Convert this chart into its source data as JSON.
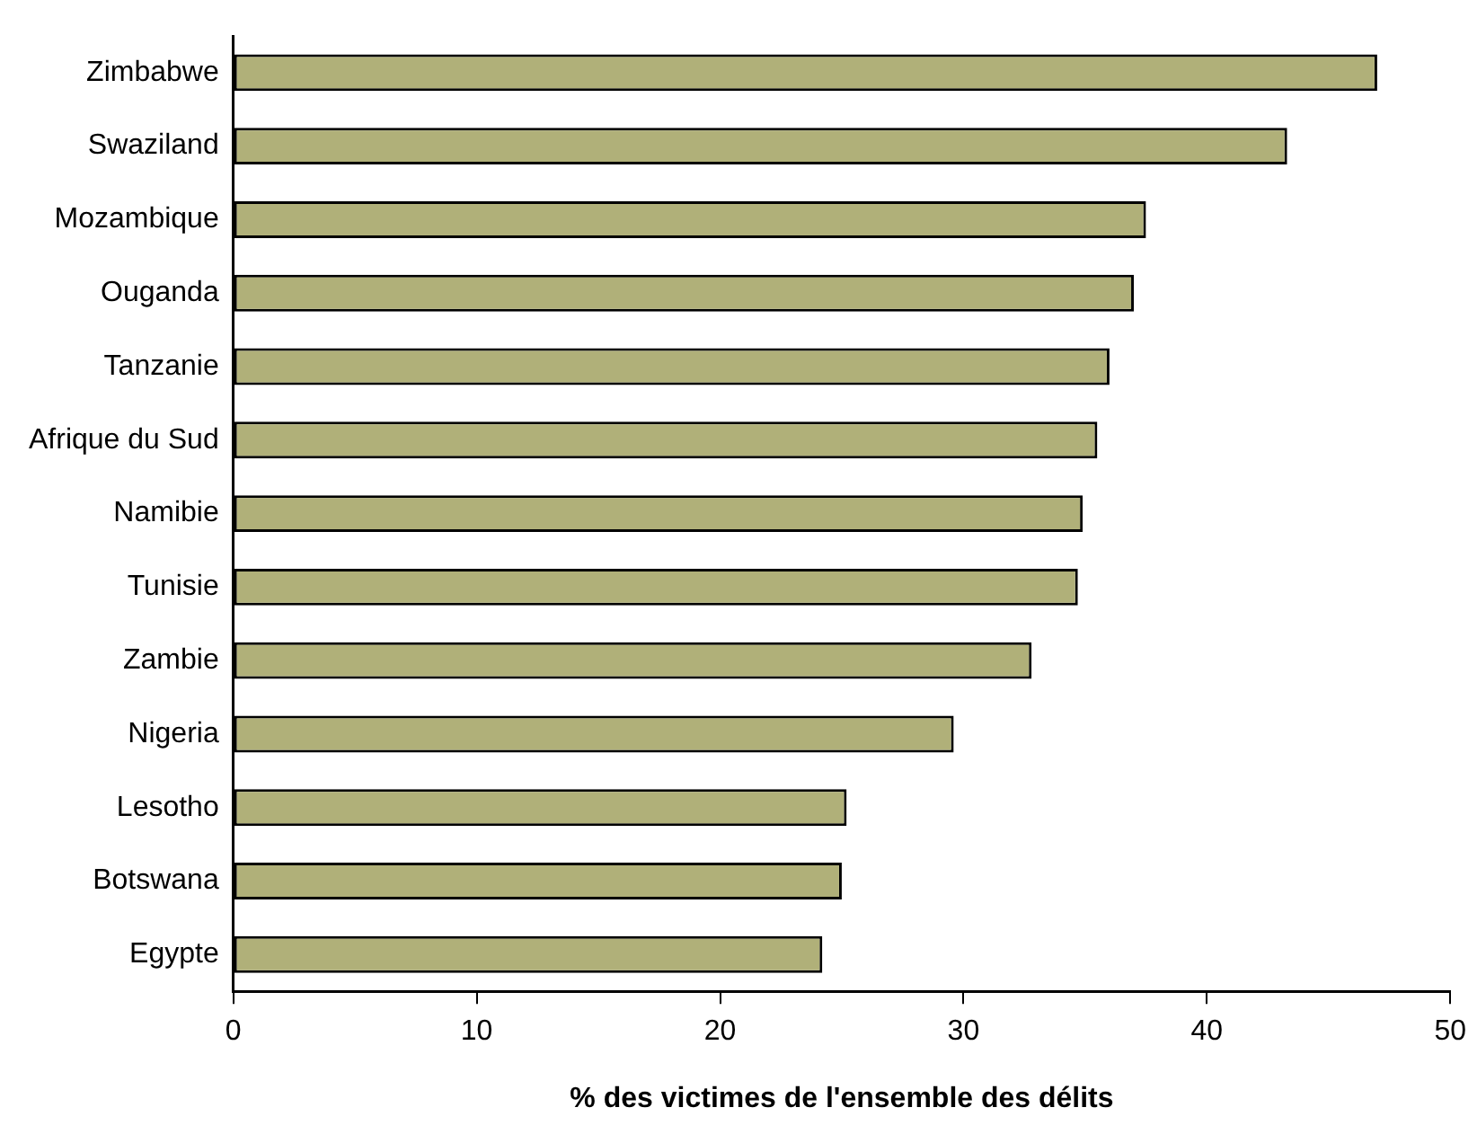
{
  "chart_data": {
    "type": "bar",
    "orientation": "horizontal",
    "xlabel": "% des victimes de l'ensemble des délits",
    "categories": [
      "Zimbabwe",
      "Swaziland",
      "Mozambique",
      "Ouganda",
      "Tanzanie",
      "Afrique du Sud",
      "Namibie",
      "Tunisie",
      "Zambie",
      "Nigeria",
      "Lesotho",
      "Botswana",
      "Egypte"
    ],
    "values": [
      47.0,
      43.3,
      37.5,
      37.0,
      36.0,
      35.5,
      34.9,
      34.7,
      32.8,
      29.6,
      25.2,
      25.0,
      24.2
    ],
    "color": "#b0b079",
    "xlim": [
      0,
      50
    ],
    "xticks": [
      0,
      10,
      20,
      30,
      40,
      50
    ],
    "grid": false,
    "legend": false
  }
}
